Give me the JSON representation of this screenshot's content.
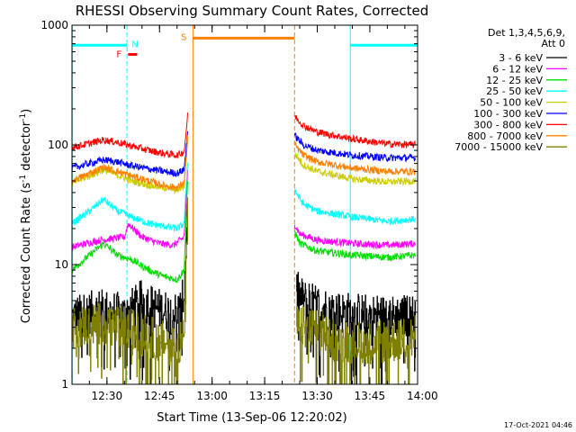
{
  "chart_data": {
    "type": "line",
    "title": "RHESSI Observing Summary Count Rates, Corrected",
    "xlabel": "Start Time (13-Sep-06 12:20:02)",
    "ylabel": "Corrected Count Rate (s",
    "ylabel_sup": "-1",
    "ylabel_tail": " detector",
    "ylabel_tail_sup": "-1",
    "ylabel_end": ")",
    "ylog": true,
    "ylim": [
      1,
      1000
    ],
    "xlim_minutes": [
      0,
      98.6
    ],
    "x_ticks": [
      {
        "label": "12:30",
        "min": 9.97
      },
      {
        "label": "12:45",
        "min": 24.97
      },
      {
        "label": "13:00",
        "min": 39.97
      },
      {
        "label": "13:15",
        "min": 54.97
      },
      {
        "label": "13:30",
        "min": 69.97
      },
      {
        "label": "13:45",
        "min": 84.97
      },
      {
        "label": "14:00",
        "min": 99.97
      }
    ],
    "y_ticks": [
      {
        "label": "1",
        "v": 1
      },
      {
        "label": "10",
        "v": 10
      },
      {
        "label": "100",
        "v": 100
      },
      {
        "label": "1000",
        "v": 1000
      }
    ],
    "legend_header": [
      "Det 1,3,4,5,6,9,",
      "Att 0"
    ],
    "legend_placement": "right",
    "footer_date": "17-Oct-2021 04:46",
    "data_gap_minutes": [
      33.5,
      63.5
    ],
    "series": [
      {
        "name": "3 - 6 keV",
        "color": "#000000",
        "pre": [
          [
            0,
            3.6
          ],
          [
            8,
            4.2
          ],
          [
            15,
            3.8
          ],
          [
            20,
            5.0
          ],
          [
            25,
            4.2
          ],
          [
            29,
            3.9
          ],
          [
            31,
            4.2
          ],
          [
            32,
            6
          ],
          [
            33,
            30
          ]
        ],
        "post": [
          [
            64,
            6
          ],
          [
            66,
            5.0
          ],
          [
            70,
            4.5
          ],
          [
            76,
            4.0
          ],
          [
            84,
            3.8
          ],
          [
            92,
            3.7
          ],
          [
            98,
            3.8
          ]
        ]
      },
      {
        "name": "6 - 12 keV",
        "color": "#ff00ff",
        "pre": [
          [
            0,
            14
          ],
          [
            8,
            16
          ],
          [
            15,
            17
          ],
          [
            16,
            22
          ],
          [
            20,
            17
          ],
          [
            25,
            15
          ],
          [
            29,
            14.5
          ],
          [
            32,
            17
          ],
          [
            33,
            60
          ]
        ],
        "post": [
          [
            63.5,
            22
          ],
          [
            65,
            18
          ],
          [
            70,
            16
          ],
          [
            80,
            15
          ],
          [
            90,
            14.5
          ],
          [
            98,
            15
          ]
        ]
      },
      {
        "name": "12 - 25 keV",
        "color": "#00dd00",
        "pre": [
          [
            0,
            9
          ],
          [
            5,
            12
          ],
          [
            9,
            15
          ],
          [
            13,
            12
          ],
          [
            17,
            11
          ],
          [
            22,
            9
          ],
          [
            26,
            8
          ],
          [
            30,
            7.5
          ],
          [
            32,
            9
          ],
          [
            33,
            50
          ]
        ],
        "post": [
          [
            63.5,
            19
          ],
          [
            65,
            15
          ],
          [
            70,
            13
          ],
          [
            80,
            12
          ],
          [
            90,
            11.5
          ],
          [
            98,
            12
          ]
        ]
      },
      {
        "name": "25 - 50 keV",
        "color": "#00ffff",
        "pre": [
          [
            0,
            22
          ],
          [
            5,
            28
          ],
          [
            9,
            35
          ],
          [
            13,
            28
          ],
          [
            17,
            25
          ],
          [
            22,
            22
          ],
          [
            26,
            21
          ],
          [
            30,
            20
          ],
          [
            32,
            22
          ],
          [
            33,
            75
          ]
        ],
        "post": [
          [
            63.5,
            42
          ],
          [
            66,
            32
          ],
          [
            70,
            28
          ],
          [
            80,
            25
          ],
          [
            90,
            23
          ],
          [
            98,
            24
          ]
        ]
      },
      {
        "name": "50 - 100 keV",
        "color": "#cccc00",
        "pre": [
          [
            0,
            48
          ],
          [
            5,
            55
          ],
          [
            9,
            62
          ],
          [
            13,
            56
          ],
          [
            17,
            50
          ],
          [
            22,
            46
          ],
          [
            26,
            44
          ],
          [
            30,
            42
          ],
          [
            32,
            45
          ],
          [
            33,
            110
          ]
        ],
        "post": [
          [
            63.5,
            85
          ],
          [
            66,
            68
          ],
          [
            70,
            60
          ],
          [
            80,
            52
          ],
          [
            90,
            49
          ],
          [
            98,
            50
          ]
        ]
      },
      {
        "name": "100 - 300 keV",
        "color": "#0000ff",
        "pre": [
          [
            0,
            64
          ],
          [
            5,
            70
          ],
          [
            9,
            75
          ],
          [
            13,
            72
          ],
          [
            17,
            67
          ],
          [
            22,
            63
          ],
          [
            26,
            60
          ],
          [
            30,
            58
          ],
          [
            32,
            62
          ],
          [
            33,
            130
          ]
        ],
        "post": [
          [
            63.5,
            120
          ],
          [
            66,
            100
          ],
          [
            70,
            90
          ],
          [
            80,
            82
          ],
          [
            90,
            78
          ],
          [
            98,
            78
          ]
        ]
      },
      {
        "name": "300 - 800 keV",
        "color": "#ff0000",
        "pre": [
          [
            0,
            95
          ],
          [
            5,
            103
          ],
          [
            9,
            110
          ],
          [
            13,
            105
          ],
          [
            17,
            98
          ],
          [
            22,
            90
          ],
          [
            26,
            85
          ],
          [
            30,
            82
          ],
          [
            32,
            88
          ],
          [
            33,
            175
          ]
        ],
        "post": [
          [
            63.5,
            175
          ],
          [
            66,
            145
          ],
          [
            70,
            128
          ],
          [
            80,
            112
          ],
          [
            90,
            102
          ],
          [
            98,
            100
          ]
        ]
      },
      {
        "name": "800 - 7000 keV",
        "color": "#ff8000",
        "pre": [
          [
            0,
            50
          ],
          [
            5,
            58
          ],
          [
            9,
            65
          ],
          [
            13,
            60
          ],
          [
            17,
            55
          ],
          [
            22,
            50
          ],
          [
            26,
            46
          ],
          [
            30,
            44
          ],
          [
            32,
            48
          ],
          [
            33,
            115
          ]
        ],
        "post": [
          [
            63.5,
            100
          ],
          [
            66,
            82
          ],
          [
            70,
            72
          ],
          [
            80,
            64
          ],
          [
            90,
            60
          ],
          [
            98,
            60
          ]
        ]
      },
      {
        "name": "7000 - 15000 keV",
        "color": "#808000",
        "pre": [
          [
            0,
            3.0
          ],
          [
            8,
            3.2
          ],
          [
            15,
            3.0
          ],
          [
            20,
            2.6
          ],
          [
            25,
            2.3
          ],
          [
            30,
            2.1
          ],
          [
            32,
            2.5
          ],
          [
            33,
            25
          ]
        ],
        "post": [
          [
            64,
            3.1
          ],
          [
            70,
            2.8
          ],
          [
            76,
            2.3
          ],
          [
            84,
            2.2
          ],
          [
            92,
            2.3
          ],
          [
            98,
            2.5
          ]
        ]
      }
    ],
    "annotations": [
      {
        "label": "N",
        "color": "#00ffff",
        "bar_minutes": [
          0,
          15.7
        ],
        "level_v": 680,
        "bar_color": "#00ffff"
      },
      {
        "label": "N",
        "color": "#00ffff",
        "bar_minutes": [
          79.4,
          98.6
        ],
        "level_v": 680,
        "bar_color": "#00ffff"
      },
      {
        "label": "F",
        "color": "#ff0000",
        "bar_minutes": [
          16.0,
          18.6
        ],
        "level_v": 570,
        "bar_color": "#ff0000"
      },
      {
        "label": "S",
        "color": "#ff8000",
        "bar_minutes": [
          34.5,
          63.5
        ],
        "level_v": 780,
        "bar_color": "#ff8000"
      }
    ],
    "vlines": [
      {
        "min": 0.05,
        "color": "#00ffff",
        "dashed": false
      },
      {
        "min": 15.7,
        "color": "#00ffff",
        "dashed": true
      },
      {
        "min": 34.5,
        "color": "#ff8000",
        "dashed": false
      },
      {
        "min": 63.5,
        "color": "#ff8000",
        "dashed": true
      },
      {
        "min": 79.4,
        "color": "#00ffff",
        "dashed": false
      },
      {
        "min": 98.6,
        "color": "#00ffff",
        "dashed": true
      }
    ]
  }
}
